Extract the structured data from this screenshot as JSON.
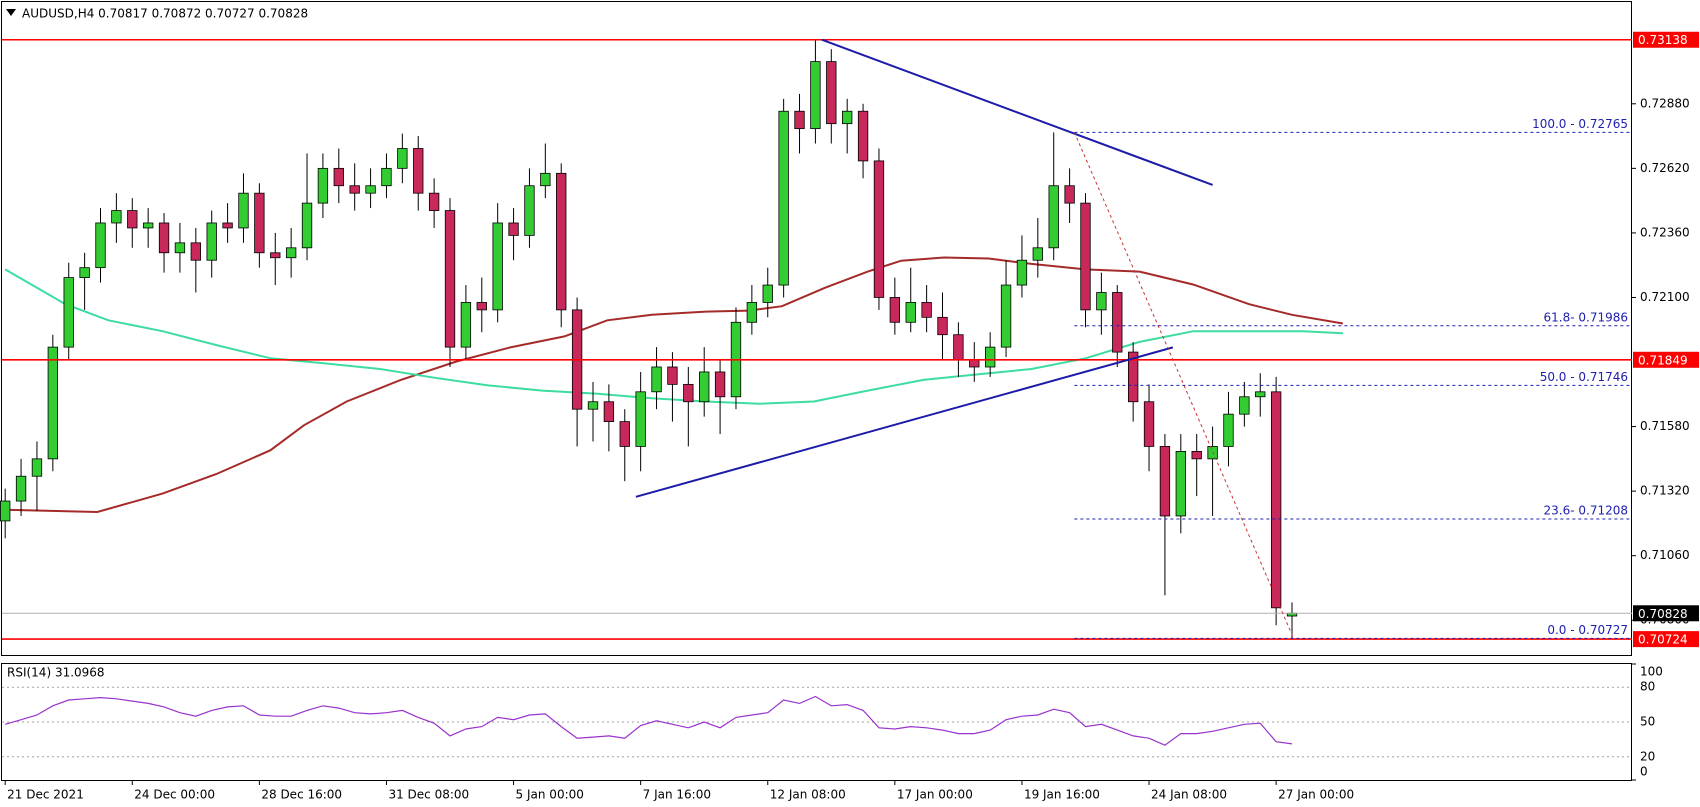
{
  "chart_data": [
    {
      "type": "candlestick",
      "title": "AUDUSD,H4  0.70817 0.70872 0.70727 0.70828",
      "xlim": [
        -0.2,
        102.4
      ],
      "ylim": [
        0.7066,
        0.7329
      ],
      "xticks": [
        {
          "value": 0,
          "label": "21 Dec 2021"
        },
        {
          "value": 8,
          "label": "24 Dec 00:00"
        },
        {
          "value": 16,
          "label": "28 Dec 16:00"
        },
        {
          "value": 24,
          "label": "31 Dec 08:00"
        },
        {
          "value": 32,
          "label": "5 Jan 00:00"
        },
        {
          "value": 40,
          "label": "7 Jan 16:00"
        },
        {
          "value": 48,
          "label": "12 Jan 08:00"
        },
        {
          "value": 56,
          "label": "17 Jan 00:00"
        },
        {
          "value": 64,
          "label": "19 Jan 16:00"
        },
        {
          "value": 72,
          "label": "24 Jan 08:00"
        },
        {
          "value": 80,
          "label": "27 Jan 00:00"
        }
      ],
      "yticks": [
        {
          "value": 0.7288,
          "label": "0.72880"
        },
        {
          "value": 0.7262,
          "label": "0.72620"
        },
        {
          "value": 0.7236,
          "label": "0.72360"
        },
        {
          "value": 0.721,
          "label": "0.72100"
        },
        {
          "value": 0.7158,
          "label": "0.71580"
        },
        {
          "value": 0.7132,
          "label": "0.71320"
        },
        {
          "value": 0.7106,
          "label": "0.71060"
        },
        {
          "value": 0.708,
          "label": "0.70800"
        }
      ],
      "up_color": "#33cc33",
      "down_color": "#c8285a",
      "open": [
        0.712,
        0.7128,
        0.7138,
        0.7145,
        0.719,
        0.7218,
        0.7222,
        0.724,
        0.7245,
        0.7238,
        0.724,
        0.7228,
        0.7232,
        0.7225,
        0.724,
        0.7238,
        0.7252,
        0.7228,
        0.7226,
        0.723,
        0.7248,
        0.7262,
        0.7255,
        0.7252,
        0.7255,
        0.7262,
        0.727,
        0.7252,
        0.7245,
        0.719,
        0.7208,
        0.7205,
        0.724,
        0.7235,
        0.7255,
        0.726,
        0.7205,
        0.7165,
        0.7168,
        0.716,
        0.715,
        0.7172,
        0.7182,
        0.7175,
        0.7168,
        0.718,
        0.717,
        0.72,
        0.7208,
        0.7215,
        0.7285,
        0.7278,
        0.7305,
        0.728,
        0.7285,
        0.7265,
        0.721,
        0.72,
        0.7208,
        0.7202,
        0.7195,
        0.7185,
        0.7182,
        0.719,
        0.7215,
        0.7225,
        0.723,
        0.7255,
        0.7248,
        0.7205,
        0.7212,
        0.7188,
        0.7168,
        0.715,
        0.7122,
        0.7148,
        0.7145,
        0.715,
        0.7163,
        0.717,
        0.7172,
        0.70817
      ],
      "high": [
        0.7133,
        0.7145,
        0.7152,
        0.7195,
        0.7224,
        0.7228,
        0.7246,
        0.7252,
        0.725,
        0.7246,
        0.7244,
        0.724,
        0.7238,
        0.7245,
        0.7248,
        0.726,
        0.7256,
        0.7236,
        0.7238,
        0.7268,
        0.7268,
        0.727,
        0.7264,
        0.7262,
        0.7268,
        0.7276,
        0.7275,
        0.7258,
        0.725,
        0.7215,
        0.7218,
        0.7248,
        0.7246,
        0.7262,
        0.7272,
        0.7264,
        0.721,
        0.7176,
        0.7175,
        0.7165,
        0.718,
        0.719,
        0.7188,
        0.7182,
        0.719,
        0.7185,
        0.7206,
        0.7215,
        0.7222,
        0.729,
        0.7292,
        0.73138,
        0.731,
        0.729,
        0.7288,
        0.727,
        0.7218,
        0.7222,
        0.7215,
        0.7212,
        0.72,
        0.7192,
        0.7196,
        0.7225,
        0.7235,
        0.7242,
        0.72765,
        0.7262,
        0.7252,
        0.722,
        0.7215,
        0.7192,
        0.7175,
        0.7155,
        0.7155,
        0.7155,
        0.7158,
        0.7172,
        0.7176,
        0.71795,
        0.7178,
        0.70872
      ],
      "low": [
        0.7113,
        0.7122,
        0.7124,
        0.714,
        0.7185,
        0.7205,
        0.7216,
        0.7232,
        0.723,
        0.723,
        0.722,
        0.722,
        0.7212,
        0.7218,
        0.7232,
        0.7232,
        0.7222,
        0.7215,
        0.7218,
        0.7225,
        0.7242,
        0.7248,
        0.7245,
        0.7246,
        0.725,
        0.7256,
        0.7245,
        0.7238,
        0.7182,
        0.7185,
        0.7196,
        0.72,
        0.7225,
        0.723,
        0.725,
        0.7198,
        0.715,
        0.7152,
        0.7148,
        0.7136,
        0.714,
        0.7165,
        0.716,
        0.715,
        0.7162,
        0.7155,
        0.7165,
        0.7195,
        0.7202,
        0.721,
        0.7268,
        0.7272,
        0.7272,
        0.7268,
        0.7258,
        0.7205,
        0.7195,
        0.7196,
        0.7196,
        0.7185,
        0.7178,
        0.7176,
        0.7178,
        0.7186,
        0.721,
        0.7218,
        0.7225,
        0.724,
        0.7198,
        0.7195,
        0.7182,
        0.716,
        0.714,
        0.709,
        0.7115,
        0.713,
        0.7122,
        0.7142,
        0.7158,
        0.7162,
        0.7078,
        0.70727
      ],
      "close": [
        0.7128,
        0.7138,
        0.7145,
        0.719,
        0.7218,
        0.7222,
        0.724,
        0.7245,
        0.7238,
        0.724,
        0.7228,
        0.7232,
        0.7225,
        0.724,
        0.7238,
        0.7252,
        0.7228,
        0.7226,
        0.723,
        0.7248,
        0.7262,
        0.7255,
        0.7252,
        0.7255,
        0.7262,
        0.727,
        0.7252,
        0.7245,
        0.719,
        0.7208,
        0.7205,
        0.724,
        0.7235,
        0.7255,
        0.726,
        0.7205,
        0.7165,
        0.7168,
        0.716,
        0.715,
        0.7172,
        0.7182,
        0.7175,
        0.7168,
        0.718,
        0.717,
        0.72,
        0.7208,
        0.7215,
        0.7285,
        0.7278,
        0.7305,
        0.728,
        0.7285,
        0.7265,
        0.721,
        0.72,
        0.7208,
        0.7202,
        0.7195,
        0.7185,
        0.7182,
        0.719,
        0.7215,
        0.7225,
        0.723,
        0.7255,
        0.7248,
        0.7205,
        0.7212,
        0.7188,
        0.7168,
        0.715,
        0.7122,
        0.7148,
        0.7145,
        0.715,
        0.7163,
        0.717,
        0.7172,
        0.7085,
        0.70828
      ],
      "moving_averages": [
        {
          "color": "#a52a2a",
          "x": [
            0,
            5.8,
            9.9,
            13.3,
            16.7,
            18.8,
            21.5,
            24.9,
            28.4,
            31.8,
            35.2,
            37.9,
            40.7,
            44.1,
            46.8,
            48.9,
            51.6,
            54.3,
            56.4,
            59.1,
            61.9,
            64.6,
            68,
            71.4,
            74.8,
            78.3,
            81,
            84.2
          ],
          "values": [
            0.71245,
            0.71236,
            0.7131,
            0.71389,
            0.71485,
            0.71585,
            0.71681,
            0.71768,
            0.71842,
            0.71899,
            0.71943,
            0.72008,
            0.7203,
            0.72043,
            0.72047,
            0.72065,
            0.72139,
            0.72204,
            0.72248,
            0.72261,
            0.72257,
            0.72235,
            0.72213,
            0.72204,
            0.72152,
            0.72073,
            0.7203,
            0.71995
          ]
        },
        {
          "color": "#3ddca0",
          "x": [
            0,
            3.8,
            6.5,
            9.9,
            13.3,
            16.7,
            20.2,
            23.6,
            27,
            30.4,
            33.8,
            37.3,
            40.7,
            44.1,
            47.5,
            50.9,
            54.3,
            57.8,
            61.2,
            64.6,
            68,
            71.4,
            74.8,
            78.3,
            81.7,
            84.2
          ],
          "values": [
            0.72213,
            0.72073,
            0.72008,
            0.71964,
            0.71908,
            0.71855,
            0.71834,
            0.71812,
            0.71777,
            0.71746,
            0.71725,
            0.71712,
            0.71694,
            0.71681,
            0.71672,
            0.71681,
            0.71725,
            0.71768,
            0.7179,
            0.71812,
            0.71855,
            0.71921,
            0.71964,
            0.71964,
            0.71964,
            0.71956
          ]
        }
      ],
      "hlines": [
        {
          "value": 0.73138,
          "color": "#ff0000"
        },
        {
          "value": 0.71849,
          "color": "#ff0000"
        },
        {
          "value": 0.70724,
          "color": "#ff0000"
        }
      ],
      "current_price": 0.70828,
      "trendlines": [
        {
          "color": "#1c1ca8",
          "x": [
            51.4,
            76.0
          ],
          "values": [
            0.73138,
            0.72553
          ]
        },
        {
          "color": "#1c1ca8",
          "x": [
            39.7,
            73.5
          ],
          "values": [
            0.71297,
            0.71899
          ]
        }
      ],
      "fibonacci": {
        "color": "#2020b0",
        "diagonal_color": "#cc3333",
        "x": [
          67.3,
          81.1
        ],
        "values": [
          0.72765,
          0.70727
        ],
        "levels": [
          {
            "value": 0.72765,
            "label": "100.0 - 0.72765"
          },
          {
            "value": 0.71986,
            "label": "61.8- 0.71986"
          },
          {
            "value": 0.71746,
            "label": "50.0 - 0.71746"
          },
          {
            "value": 0.71208,
            "label": "23.6- 0.71208"
          },
          {
            "value": 0.70727,
            "label": "0.0 - 0.70727"
          }
        ]
      }
    },
    {
      "type": "line",
      "title": "RSI(14) 31.0968",
      "color": "#9933cc",
      "ylim": [
        0,
        100
      ],
      "yticks": [
        0,
        20,
        50,
        80,
        100
      ],
      "values": [
        48,
        52,
        56,
        64,
        69,
        70,
        71,
        70,
        68,
        66,
        63,
        58,
        55,
        60,
        63,
        64,
        56,
        55,
        55,
        60,
        64,
        62,
        58,
        57,
        58,
        60,
        54,
        49,
        38,
        44,
        46,
        54,
        52,
        56,
        57,
        46,
        36,
        37,
        38,
        36,
        47,
        51,
        48,
        45,
        50,
        45,
        54,
        56,
        58,
        69,
        66,
        72,
        64,
        65,
        60,
        45,
        44,
        46,
        45,
        43,
        40,
        40,
        43,
        52,
        55,
        56,
        61,
        58,
        46,
        48,
        43,
        38,
        36,
        30,
        40,
        40,
        42,
        45,
        48,
        49,
        33,
        31.0968
      ]
    }
  ]
}
